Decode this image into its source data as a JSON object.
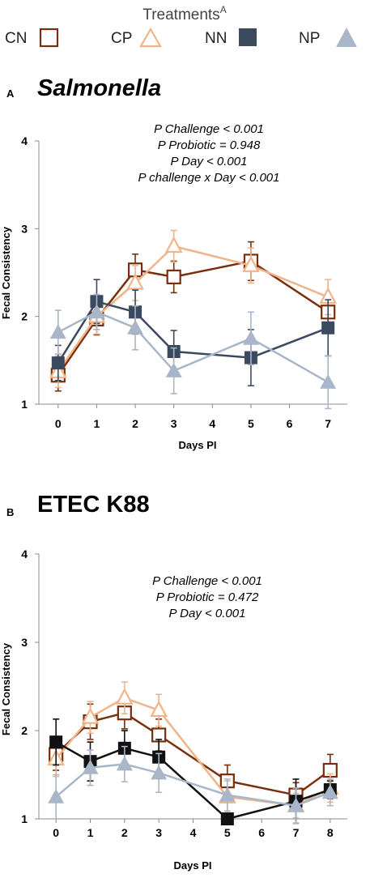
{
  "legend": {
    "title": "Treatments",
    "title_superscript": "A",
    "items": [
      {
        "label": "CN",
        "marker": "open-square",
        "color": "#7a2e0c"
      },
      {
        "label": "CP",
        "marker": "open-triangle",
        "color": "#f0b48a"
      },
      {
        "label": "NN",
        "marker": "filled-square",
        "color": "#3c4a60"
      },
      {
        "label": "NP",
        "marker": "filled-triangle",
        "color": "#a9b6c9"
      }
    ]
  },
  "chart_data": [
    {
      "type": "line",
      "panel_letter": "A",
      "title": "Salmonella",
      "title_italic": true,
      "xlabel": "Days PI",
      "ylabel": "Fecal Consistency",
      "ylim": [
        1,
        4
      ],
      "yticks": [
        "1",
        "2",
        "3",
        "4"
      ],
      "xticks": [
        "0",
        "1",
        "2",
        "3",
        "4",
        "5",
        "6",
        "7"
      ],
      "annotations": [
        "P Challenge < 0.001",
        "P Probiotic = 0.948",
        "P Day < 0.001",
        "P challenge x Day < 0.001"
      ],
      "series": [
        {
          "name": "CN",
          "color": "#7a2e0c",
          "marker": "open-square",
          "x": [
            0,
            1,
            2,
            3,
            5,
            7
          ],
          "y": [
            1.33,
            1.97,
            2.53,
            2.45,
            2.63,
            2.05
          ],
          "err": [
            0.18,
            0.18,
            0.18,
            0.18,
            0.22,
            0.2
          ]
        },
        {
          "name": "CP",
          "color": "#f0b48a",
          "marker": "open-triangle",
          "x": [
            0,
            1,
            2,
            3,
            5,
            7
          ],
          "y": [
            1.37,
            2.0,
            2.38,
            2.8,
            2.58,
            2.22
          ],
          "err": [
            0.18,
            0.2,
            0.2,
            0.18,
            0.2,
            0.2
          ]
        },
        {
          "name": "NN",
          "color": "#3c4a60",
          "marker": "filled-square",
          "x": [
            0,
            1,
            2,
            3,
            5,
            7
          ],
          "y": [
            1.47,
            2.17,
            2.05,
            1.6,
            1.53,
            1.87
          ],
          "err": [
            0.2,
            0.25,
            0.25,
            0.24,
            0.32,
            0.32
          ]
        },
        {
          "name": "NP",
          "color": "#a9b6c9",
          "marker": "filled-triangle",
          "x": [
            0,
            1,
            2,
            3,
            5,
            7
          ],
          "y": [
            1.82,
            2.05,
            1.87,
            1.38,
            1.75,
            1.25
          ],
          "err": [
            0.25,
            0.2,
            0.25,
            0.26,
            0.3,
            0.3
          ]
        }
      ]
    },
    {
      "type": "line",
      "panel_letter": "B",
      "title": "ETEC K88",
      "title_italic": false,
      "xlabel": "Days PI",
      "ylabel": "Fecal Consistency",
      "ylim": [
        1,
        4
      ],
      "yticks": [
        "1",
        "2",
        "3",
        "4"
      ],
      "xticks": [
        "0",
        "1",
        "2",
        "3",
        "4",
        "5",
        "6",
        "7",
        "8"
      ],
      "annotations": [
        "P Challenge < 0.001",
        "P Probiotic = 0.472",
        "P Day < 0.001"
      ],
      "series": [
        {
          "name": "CN",
          "color": "#7a2e0c",
          "marker": "open-square",
          "x": [
            0,
            1,
            2,
            3,
            5,
            7,
            8
          ],
          "y": [
            1.73,
            2.1,
            2.2,
            1.95,
            1.43,
            1.27,
            1.55
          ],
          "err": [
            0.18,
            0.2,
            0.18,
            0.18,
            0.18,
            0.14,
            0.18
          ]
        },
        {
          "name": "CP",
          "color": "#f0b48a",
          "marker": "open-triangle",
          "x": [
            0,
            1,
            2,
            3,
            5,
            7,
            8
          ],
          "y": [
            1.68,
            2.15,
            2.37,
            2.23,
            1.25,
            1.15,
            1.35
          ],
          "err": [
            0.2,
            0.18,
            0.18,
            0.18,
            0.18,
            0.14,
            0.16
          ]
        },
        {
          "name": "NN",
          "color": "#111111",
          "marker": "filled-square",
          "x": [
            0,
            1,
            2,
            3,
            5,
            7,
            8
          ],
          "y": [
            1.87,
            1.65,
            1.8,
            1.7,
            1.0,
            1.2,
            1.33
          ],
          "err": [
            0.26,
            0.22,
            0.2,
            0.2,
            0.02,
            0.25,
            0.1
          ]
        },
        {
          "name": "NP",
          "color": "#a9b6c9",
          "marker": "filled-triangle",
          "x": [
            0,
            1,
            2,
            3,
            5,
            7,
            8
          ],
          "y": [
            1.25,
            1.58,
            1.62,
            1.52,
            1.27,
            1.15,
            1.3
          ],
          "err": [
            0.25,
            0.2,
            0.2,
            0.22,
            0.18,
            0.2,
            0.15
          ]
        }
      ]
    }
  ]
}
